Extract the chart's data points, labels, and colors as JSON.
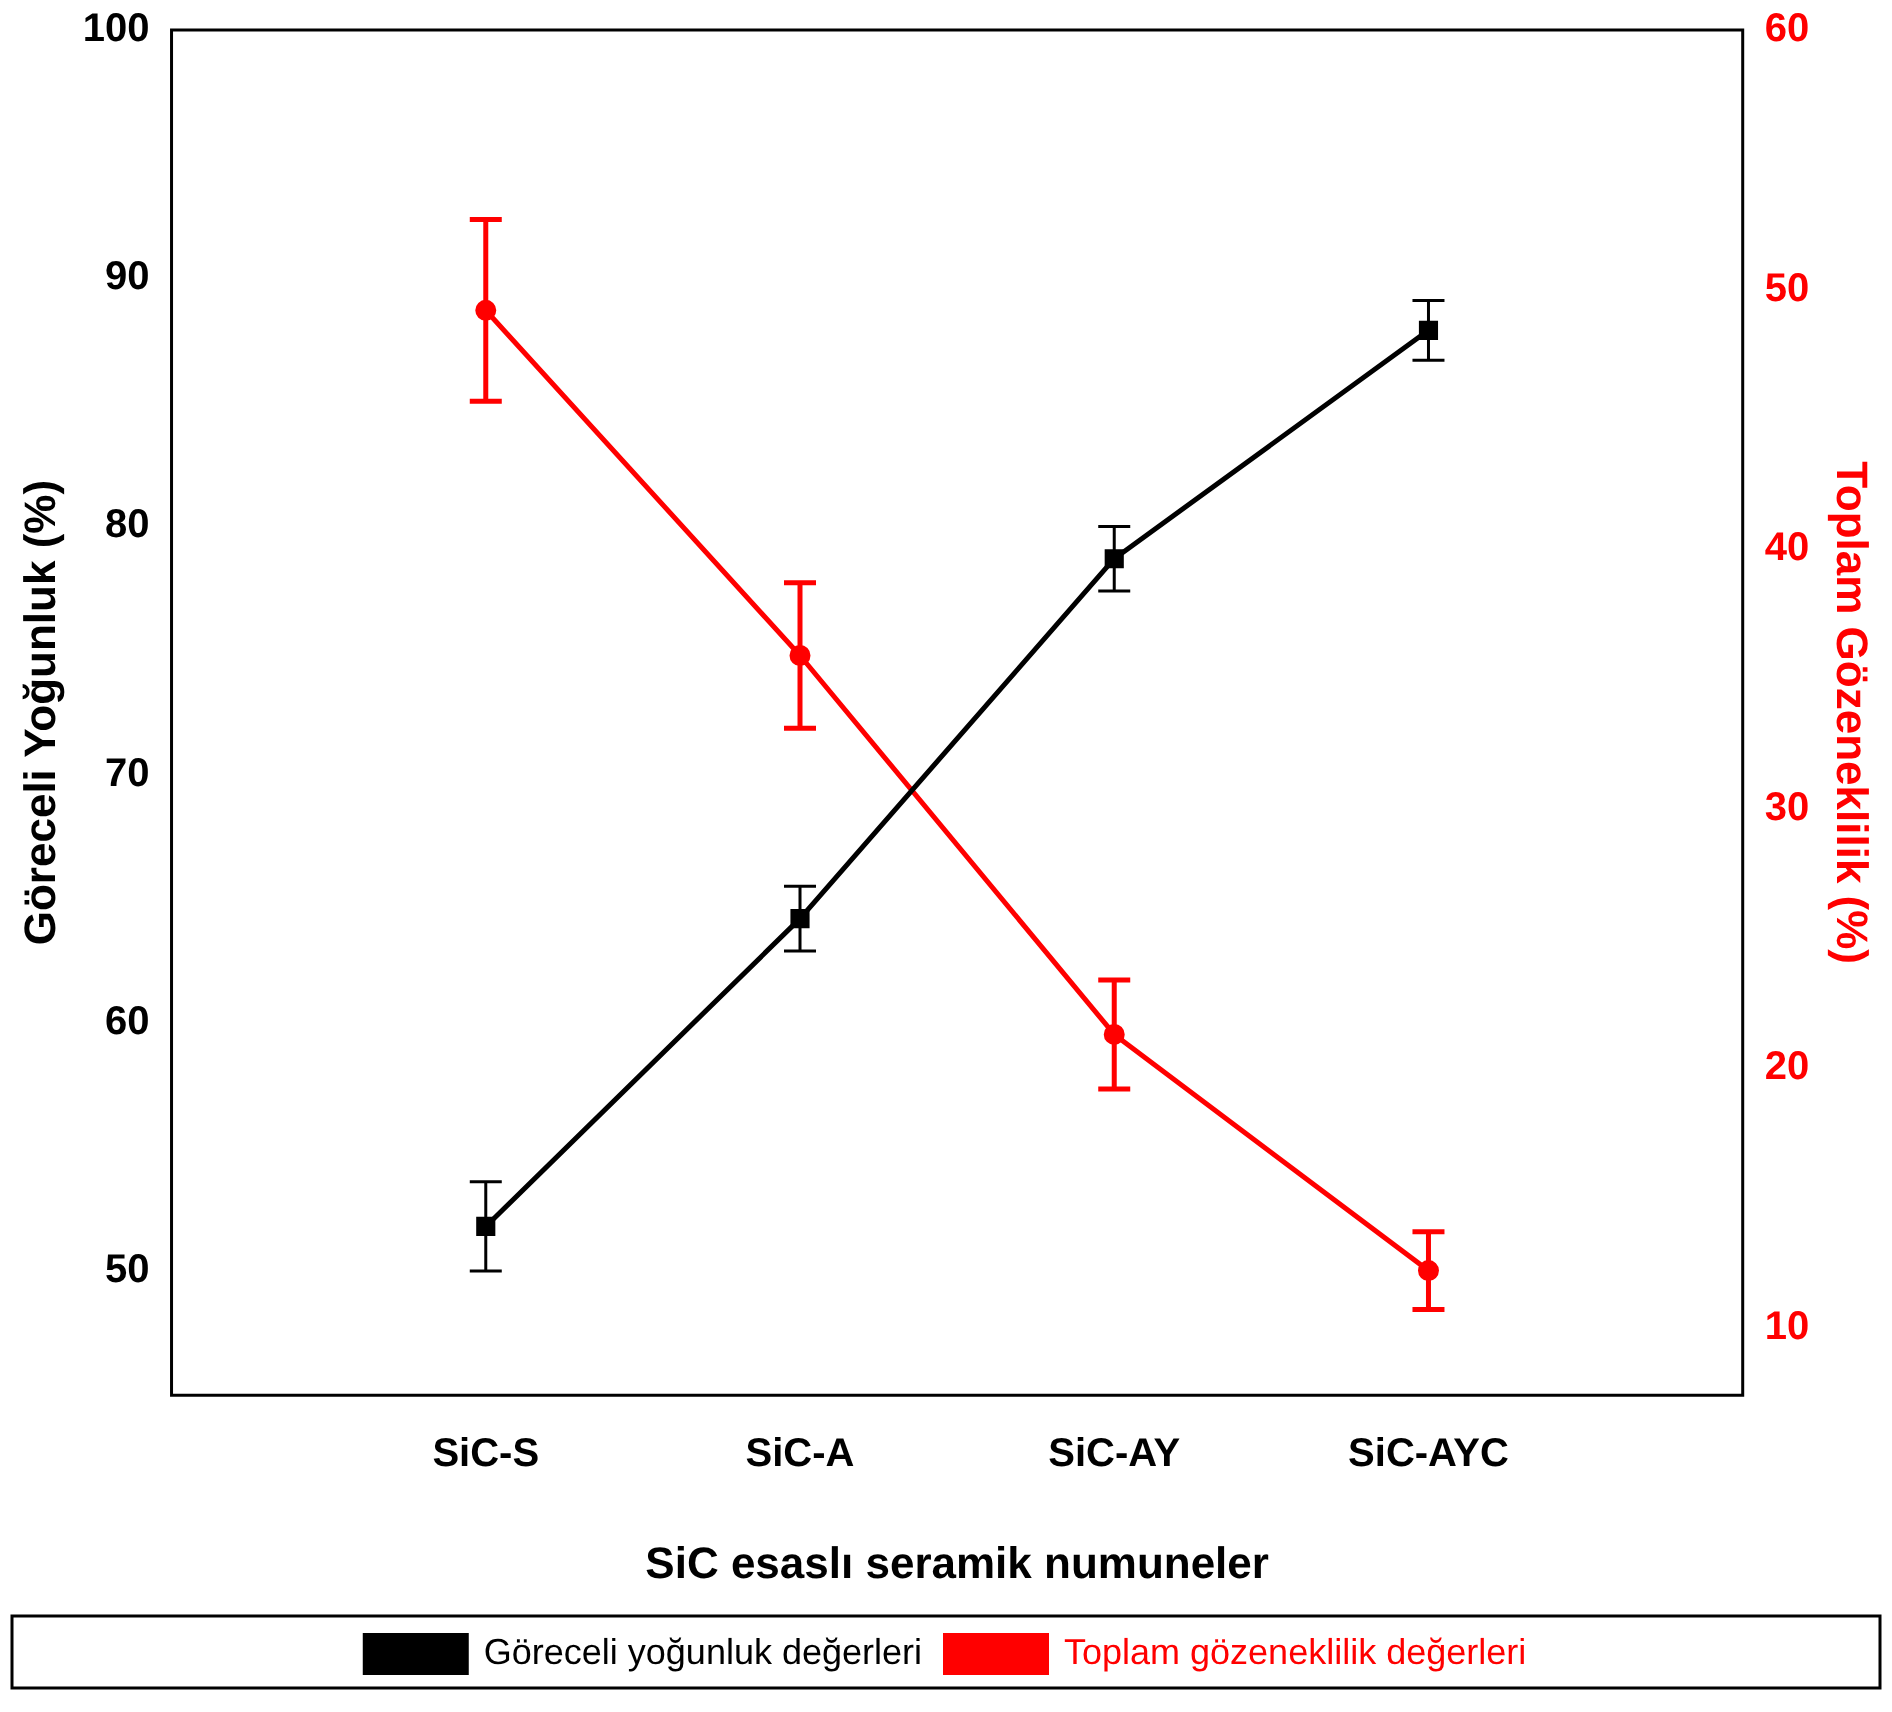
{
  "chart_data": {
    "type": "line",
    "xlabel": "SiC esaslı seramik numuneler",
    "ylabel": "Göreceli Yoğunluk (%)",
    "y2label": "Toplam Gözeneklilik (%)",
    "categories": [
      "SiC-S",
      "SiC-A",
      "SiC-AY",
      "SiC-AYC"
    ],
    "series": [
      {
        "name": "Göreceli yoğunluk değerleri",
        "color": "#000000",
        "marker": "square",
        "values": [
          51.8,
          64.2,
          78.7,
          87.9
        ],
        "errors": [
          1.8,
          1.3,
          1.3,
          1.2
        ]
      },
      {
        "name": "Toplam gözeneklilik değerleri",
        "color": "#ff0000",
        "marker": "circle",
        "axis": "y2",
        "values": [
          49.2,
          35.9,
          21.3,
          12.2
        ],
        "errors": [
          3.5,
          2.8,
          2.1,
          1.5
        ]
      }
    ],
    "ylim": [
      45,
      100
    ],
    "yticks": [
      50,
      60,
      70,
      80,
      90,
      100
    ],
    "y2lim": [
      7.4,
      60
    ],
    "y2ticks": [
      10,
      20,
      30,
      40,
      50,
      60
    ],
    "grid": false,
    "legend": "bottom",
    "line_style": "solid"
  }
}
